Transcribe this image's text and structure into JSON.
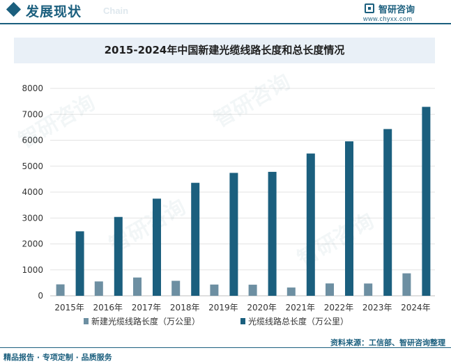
{
  "header": {
    "section_title": "发展现状",
    "section_en": "Chain",
    "brand_name": "智研咨询",
    "brand_url": "www.chyxx.com",
    "watermark": "智研咨询"
  },
  "footer": {
    "left": "精品报告 · 专项定制 · 品质服务",
    "source": "资料来源：工信部、智研咨询整理"
  },
  "colors": {
    "series_new": "#6d8fa2",
    "series_total": "#1b5f7e",
    "accent": "#1b5f7e"
  },
  "chart_data": {
    "type": "bar",
    "title": "2015-2024年中国新建光缆线路长度和总长度情况",
    "categories": [
      "2015年",
      "2016年",
      "2017年",
      "2018年",
      "2019年",
      "2020年",
      "2021年",
      "2022年",
      "2023年",
      "2024年"
    ],
    "series": [
      {
        "name": "新建光缆线路长度（万公里）",
        "values": [
          441,
          554,
          705,
          578,
          434,
          428,
          319,
          477,
          474,
          867
        ]
      },
      {
        "name": "光缆线路总长度（万公里）",
        "values": [
          2487,
          3041,
          3747,
          4358,
          4741,
          4781,
          5488,
          5958,
          6432,
          7288
        ]
      }
    ],
    "ylim": [
      0,
      8000
    ],
    "yticks": [
      0,
      1000,
      2000,
      3000,
      4000,
      5000,
      6000,
      7000,
      8000
    ],
    "grid": true,
    "legend": "bottom-center"
  }
}
